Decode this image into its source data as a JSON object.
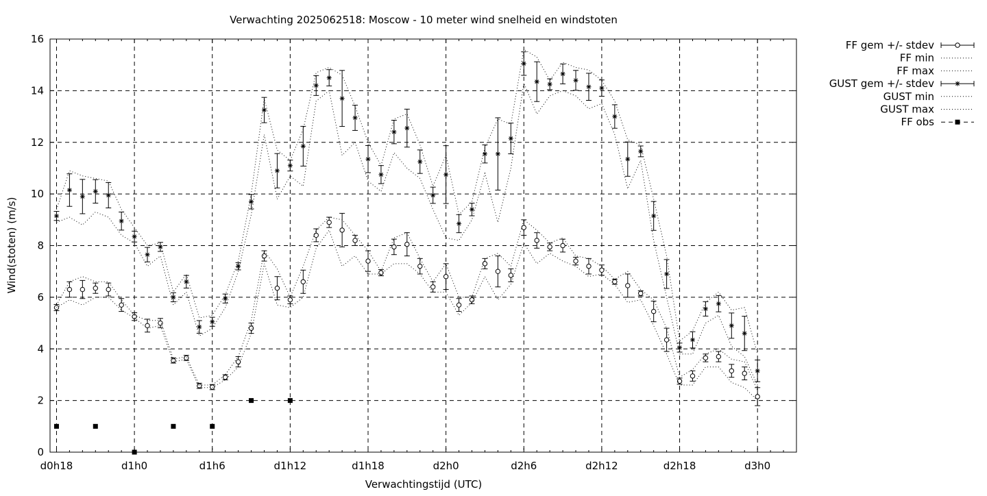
{
  "chart_data": {
    "type": "line",
    "title": "Verwachting 2025062518: Moscow - 10 meter wind snelheid en windstoten",
    "xlabel": "Verwachtingstijd (UTC)",
    "ylabel": "Wind(stoten) (m/s)",
    "ylim": [
      0,
      16
    ],
    "xlim": [
      -0.5,
      57
    ],
    "y_ticks": [
      0,
      2,
      4,
      6,
      8,
      10,
      12,
      14,
      16
    ],
    "x_ticks": [
      {
        "x": 0,
        "label": "d0h18"
      },
      {
        "x": 6,
        "label": "d1h0"
      },
      {
        "x": 12,
        "label": "d1h6"
      },
      {
        "x": 18,
        "label": "d1h12"
      },
      {
        "x": 24,
        "label": "d1h18"
      },
      {
        "x": 30,
        "label": "d2h0"
      },
      {
        "x": 36,
        "label": "d2h6"
      },
      {
        "x": 42,
        "label": "d2h12"
      },
      {
        "x": 48,
        "label": "d2h18"
      },
      {
        "x": 54,
        "label": "d3h0"
      }
    ],
    "x_unit": "hours after d0h18",
    "grid": true,
    "legend_position": "outside-right",
    "x": [
      0,
      1,
      2,
      3,
      4,
      5,
      6,
      7,
      8,
      9,
      10,
      11,
      12,
      13,
      14,
      15,
      16,
      17,
      18,
      19,
      20,
      21,
      22,
      23,
      24,
      25,
      26,
      27,
      28,
      29,
      30,
      31,
      32,
      33,
      34,
      35,
      36,
      37,
      38,
      39,
      40,
      41,
      42,
      43,
      44,
      45,
      46,
      47,
      48,
      49,
      50,
      51,
      52,
      53,
      54
    ],
    "series": [
      {
        "name": "FF gem +/- stdev",
        "style": "errorbars-circle",
        "values": [
          5.6,
          6.3,
          6.3,
          6.35,
          6.3,
          5.7,
          5.25,
          4.9,
          5.0,
          3.55,
          3.65,
          2.57,
          2.52,
          2.9,
          3.5,
          4.8,
          7.6,
          6.35,
          5.9,
          6.6,
          8.4,
          8.9,
          8.6,
          8.2,
          7.4,
          6.95,
          7.95,
          8.05,
          7.2,
          6.4,
          6.8,
          5.7,
          5.9,
          7.3,
          7.0,
          6.85,
          8.7,
          8.2,
          7.95,
          8.0,
          7.4,
          7.2,
          7.05,
          6.6,
          6.45,
          6.15,
          5.45,
          4.35,
          2.75,
          2.95,
          3.65,
          3.7,
          3.15,
          3.05,
          2.15
        ],
        "stdev": [
          0.12,
          0.3,
          0.35,
          0.2,
          0.25,
          0.25,
          0.15,
          0.25,
          0.18,
          0.1,
          0.1,
          0.1,
          0.1,
          0.1,
          0.2,
          0.2,
          0.2,
          0.45,
          0.15,
          0.45,
          0.25,
          0.2,
          0.65,
          0.2,
          0.4,
          0.12,
          0.3,
          0.45,
          0.3,
          0.2,
          0.5,
          0.25,
          0.15,
          0.2,
          0.6,
          0.25,
          0.3,
          0.3,
          0.15,
          0.25,
          0.15,
          0.3,
          0.2,
          0.1,
          0.45,
          0.1,
          0.4,
          0.45,
          0.12,
          0.2,
          0.15,
          0.2,
          0.25,
          0.25,
          0.35
        ]
      },
      {
        "name": "FF min",
        "style": "dotted",
        "values": [
          5.6,
          5.9,
          5.7,
          6.0,
          6.0,
          5.5,
          5.2,
          4.8,
          4.9,
          3.5,
          3.6,
          2.5,
          2.5,
          2.8,
          3.3,
          4.6,
          7.3,
          5.7,
          5.6,
          6.0,
          7.9,
          8.6,
          7.2,
          7.6,
          6.9,
          6.9,
          7.3,
          7.3,
          6.9,
          6.2,
          6.2,
          5.3,
          5.8,
          6.8,
          5.9,
          6.5,
          8.1,
          7.3,
          7.7,
          7.4,
          7.2,
          6.8,
          6.9,
          6.5,
          5.8,
          5.9,
          4.9,
          3.8,
          2.6,
          2.6,
          3.3,
          3.3,
          2.7,
          2.5,
          2.0
        ]
      },
      {
        "name": "FF max",
        "style": "dotted",
        "values": [
          5.7,
          6.6,
          6.8,
          6.6,
          6.6,
          5.9,
          5.3,
          5.1,
          5.1,
          3.6,
          3.7,
          2.6,
          2.6,
          3.0,
          3.7,
          5.1,
          7.8,
          7.1,
          6.0,
          7.2,
          8.6,
          9.1,
          9.0,
          8.4,
          7.8,
          7.0,
          8.3,
          8.5,
          7.5,
          6.6,
          7.3,
          6.0,
          6.0,
          7.5,
          7.7,
          7.2,
          9.0,
          8.6,
          8.1,
          8.3,
          7.6,
          7.5,
          7.2,
          6.7,
          7.0,
          6.3,
          5.9,
          4.8,
          2.9,
          3.2,
          3.8,
          4.0,
          3.6,
          3.5,
          2.4
        ]
      },
      {
        "name": "GUST gem +/- stdev",
        "style": "errorbars-star",
        "values": [
          9.15,
          10.15,
          9.9,
          10.1,
          9.95,
          8.95,
          8.35,
          7.65,
          7.95,
          6.0,
          6.6,
          4.85,
          5.05,
          5.95,
          7.2,
          9.7,
          13.25,
          10.9,
          11.1,
          11.85,
          14.2,
          14.5,
          13.7,
          12.95,
          11.35,
          10.75,
          12.4,
          12.55,
          11.25,
          9.95,
          10.75,
          8.85,
          9.4,
          11.55,
          11.55,
          12.15,
          15.05,
          14.35,
          14.25,
          14.65,
          14.4,
          14.15,
          14.1,
          13.0,
          11.35,
          11.65,
          9.15,
          6.9,
          4.05,
          4.35,
          5.55,
          5.75,
          4.9,
          4.6,
          3.15
        ]
      },
      {
        "name": "GUST min",
        "style": "dotted",
        "values": [
          8.9,
          9.1,
          8.8,
          9.3,
          9.1,
          8.4,
          8.1,
          7.2,
          7.6,
          5.7,
          6.2,
          4.5,
          4.8,
          5.6,
          7.0,
          9.2,
          12.3,
          9.8,
          10.7,
          10.3,
          13.6,
          14.0,
          11.5,
          12.0,
          10.5,
          10.1,
          11.6,
          11.0,
          10.6,
          9.4,
          8.3,
          8.2,
          9.0,
          10.8,
          8.9,
          11.0,
          14.3,
          13.1,
          13.8,
          14.0,
          13.8,
          13.3,
          13.5,
          12.3,
          10.2,
          11.3,
          8.2,
          6.0,
          3.8,
          3.8,
          5.0,
          5.3,
          4.1,
          3.7,
          2.6
        ]
      },
      {
        "name": "GUST max",
        "style": "dotted",
        "values": [
          9.4,
          10.9,
          10.7,
          10.6,
          10.5,
          9.4,
          8.7,
          8.0,
          8.1,
          6.2,
          6.9,
          5.2,
          5.3,
          6.1,
          7.4,
          10.0,
          13.7,
          11.7,
          11.3,
          12.5,
          14.7,
          14.9,
          14.6,
          13.4,
          12.0,
          11.1,
          12.9,
          13.1,
          11.9,
          10.3,
          11.5,
          9.2,
          9.7,
          11.8,
          12.9,
          12.7,
          15.6,
          15.3,
          14.4,
          15.1,
          14.9,
          14.8,
          14.4,
          13.6,
          12.1,
          11.9,
          9.8,
          7.6,
          4.3,
          4.7,
          5.8,
          6.2,
          5.5,
          5.6,
          3.8
        ]
      },
      {
        "name": "FF obs",
        "style": "points-square",
        "x": [
          0,
          3,
          6,
          9,
          12,
          15,
          18
        ],
        "values": [
          1,
          1,
          0,
          1,
          1,
          2,
          2
        ]
      }
    ]
  }
}
